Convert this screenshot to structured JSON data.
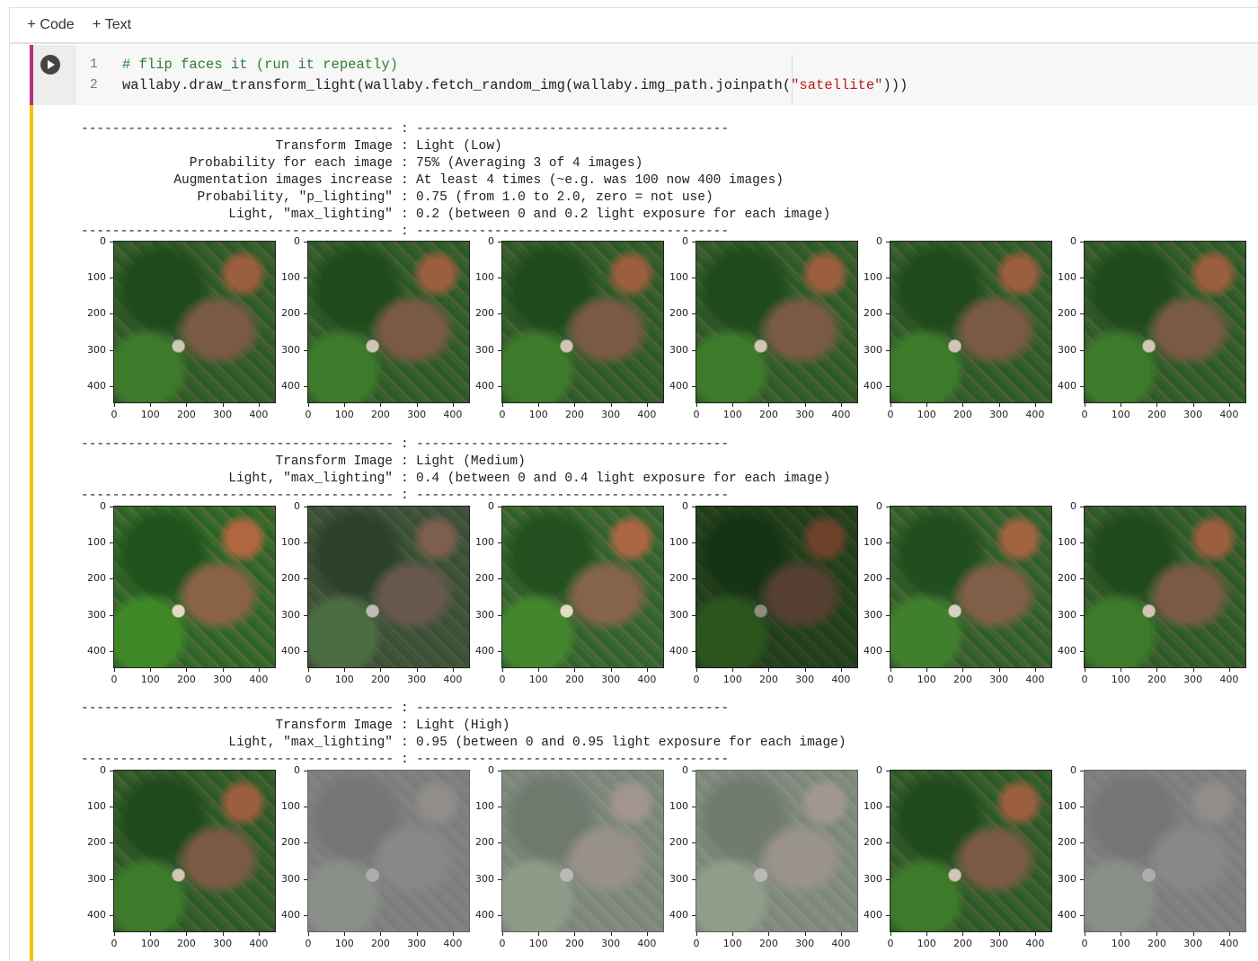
{
  "toolbar": {
    "code": "Code",
    "text": "Text"
  },
  "cell": {
    "line_numbers": [
      "1",
      "2"
    ],
    "comment": "# flip faces it (run it repeatly)",
    "code": [
      "wallaby.draw_transform_light(wallaby.fetch_random_img(wallaby.img_path.joinpath(",
      "\"satellite\"",
      ")))"
    ]
  },
  "output": {
    "rule_left": "----------------------------------------",
    "colon": ":",
    "rule_right": "----------------------------------------",
    "sections": [
      {
        "rows": [
          {
            "key": "Transform Image",
            "value": "Light (Low)"
          },
          {
            "key": "Probability for each image",
            "value": "75% (Averaging 3 of 4 images)"
          },
          {
            "key": "Augmentation images increase",
            "value": "At least 4 times (~e.g. was 100 now 400 images)"
          },
          {
            "key": "Probability, \"p_lighting\"",
            "value": "0.75 (from 1.0 to 2.0, zero = not use)"
          },
          {
            "key": "Light, \"max_lighting\"",
            "value": "0.2 (between 0 and 0.2 light exposure for each image)"
          }
        ]
      },
      {
        "rows": [
          {
            "key": "Transform Image",
            "value": "Light (Medium)"
          },
          {
            "key": "Light, \"max_lighting\"",
            "value": "0.4 (between 0 and 0.4 light exposure for each image)"
          }
        ]
      },
      {
        "rows": [
          {
            "key": "Transform Image",
            "value": "Light (High)"
          },
          {
            "key": "Light, \"max_lighting\"",
            "value": "0.95 (between 0 and 0.95 light exposure for each image)"
          }
        ]
      }
    ]
  },
  "plots": {
    "xticks": [
      0,
      100,
      200,
      300,
      400
    ],
    "yticks": [
      0,
      100,
      200,
      300,
      400
    ]
  }
}
